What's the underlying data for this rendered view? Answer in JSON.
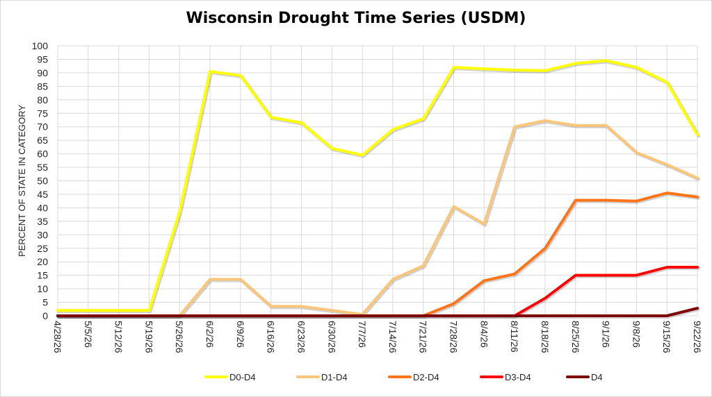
{
  "chart_data": {
    "type": "line",
    "title": "Wisconsin Drought Time Series (USDM)",
    "xlabel": "",
    "ylabel": "PERCENT OF STATE IN CATEGORY",
    "ylim": [
      0,
      100
    ],
    "ytick_step": 5,
    "grid": true,
    "legend": "bottom",
    "categories": [
      "4/28/26",
      "5/5/26",
      "5/12/26",
      "5/19/26",
      "5/26/26",
      "6/2/26",
      "6/9/26",
      "6/16/26",
      "6/23/26",
      "6/30/26",
      "7/7/26",
      "7/14/26",
      "7/21/26",
      "7/28/26",
      "8/4/26",
      "8/11/26",
      "8/18/26",
      "8/25/26",
      "9/1/26",
      "9/8/26",
      "9/15/26",
      "9/22/26"
    ],
    "series": [
      {
        "name": "D0-D4",
        "color": "#ffff00",
        "values": [
          2,
          2,
          2,
          2,
          38.5,
          90.5,
          89,
          73.5,
          71.5,
          62,
          59.5,
          69,
          73,
          92,
          91.5,
          91,
          90.8,
          93.5,
          94.5,
          92,
          86.5,
          67
        ]
      },
      {
        "name": "D1-D4",
        "color": "#fcc67a",
        "values": [
          0,
          0,
          0,
          0,
          0,
          13.5,
          13.5,
          3.5,
          3.5,
          2,
          0.5,
          13.5,
          18.5,
          40.5,
          34,
          70,
          72.3,
          70.5,
          70.5,
          60.5,
          56,
          51
        ]
      },
      {
        "name": "D2-D4",
        "color": "#ff7417",
        "values": [
          0,
          0,
          0,
          0,
          0,
          0,
          0,
          0,
          0,
          0,
          0,
          0,
          0,
          4.5,
          13,
          15.5,
          25,
          42.8,
          42.8,
          42.5,
          45.5,
          44
        ]
      },
      {
        "name": "D3-D4",
        "color": "#ff0000",
        "values": [
          0,
          0,
          0,
          0,
          0,
          0,
          0,
          0,
          0,
          0,
          0,
          0,
          0,
          0,
          0,
          0,
          6.5,
          15,
          15,
          15,
          18,
          18
        ]
      },
      {
        "name": "D4",
        "color": "#7f0000",
        "values": [
          0,
          0,
          0,
          0,
          0,
          0,
          0,
          0,
          0,
          0,
          0,
          0,
          0,
          0,
          0,
          0,
          0,
          0,
          0,
          0,
          0,
          2.8
        ]
      }
    ]
  }
}
